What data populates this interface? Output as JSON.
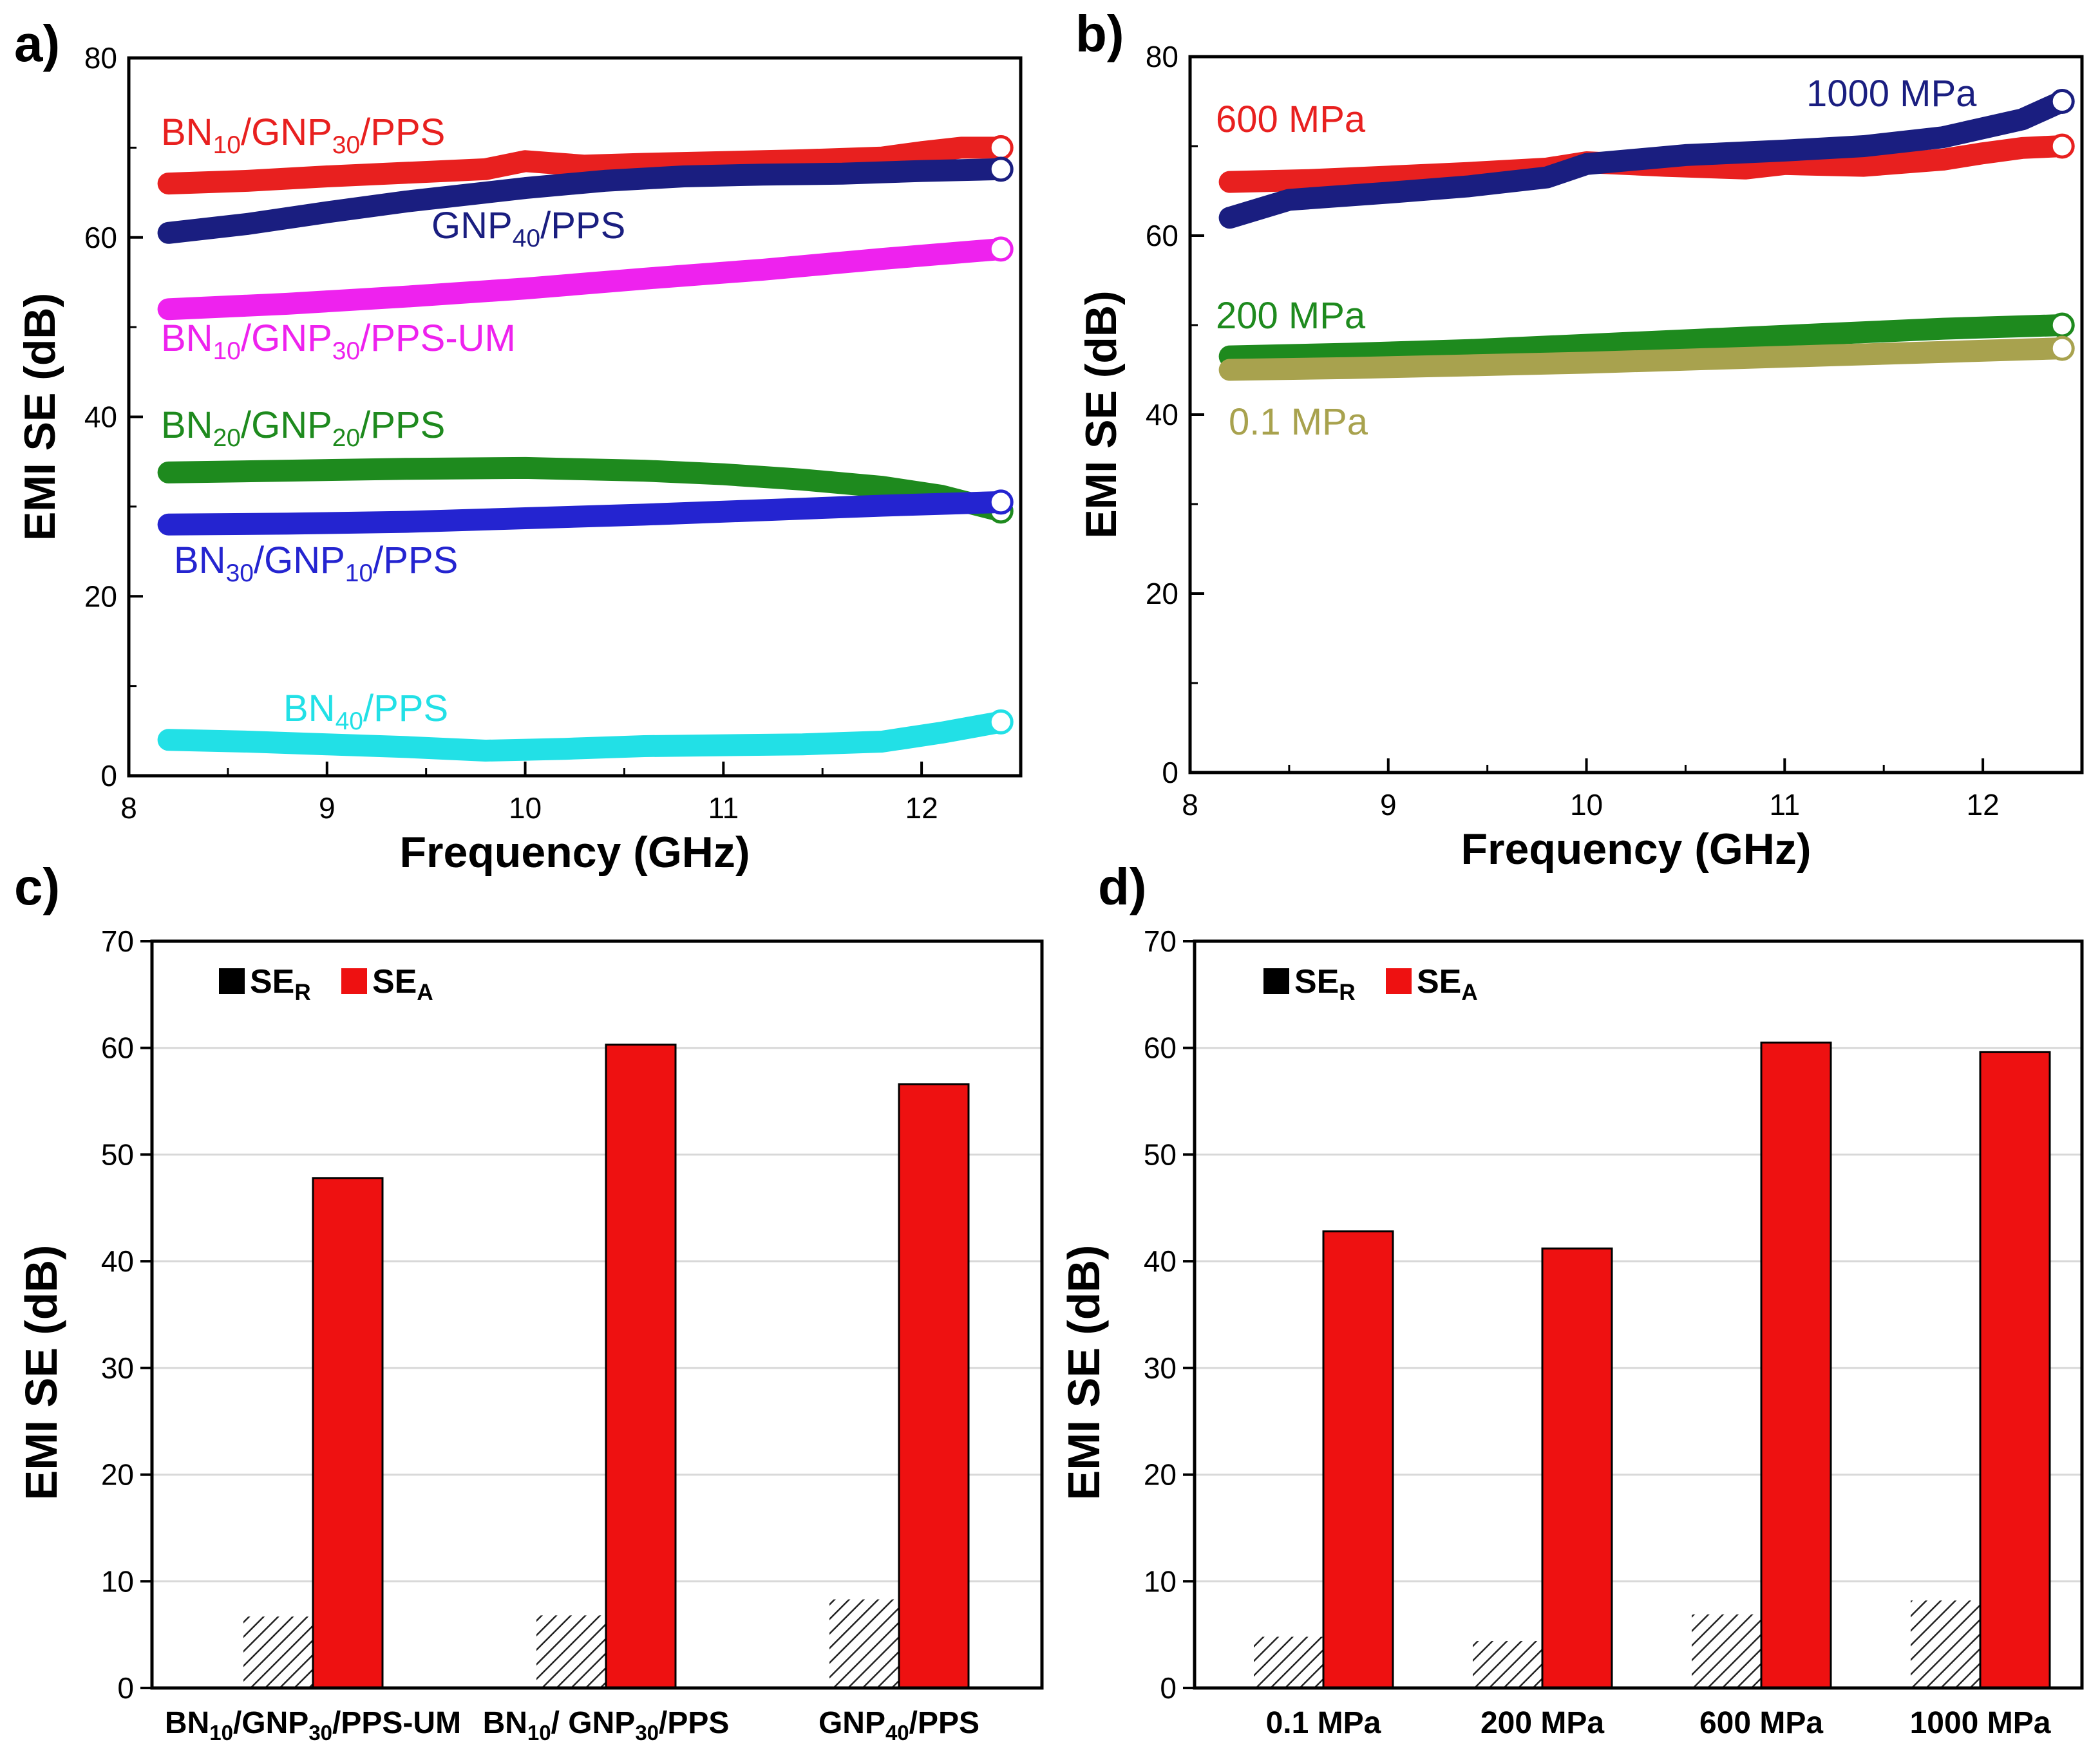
{
  "chart_data": [
    {
      "panel_label": "a)",
      "type": "line",
      "title": "",
      "xlabel": "Frequency (GHz)",
      "ylabel": "EMI SE (dB)",
      "xlim": [
        8,
        12.5
      ],
      "ylim": [
        0,
        80
      ],
      "xticks": [
        "8",
        "9",
        "10",
        "11",
        "12"
      ],
      "yticks": [
        "0",
        "20",
        "40",
        "60",
        "80"
      ],
      "series": [
        {
          "name": "BN10/GNP30/PPS",
          "label_main": "BN",
          "label_parts": [
            {
              "t": "BN",
              "sub": false
            },
            {
              "t": "10",
              "sub": true
            },
            {
              "t": "/GNP",
              "sub": false
            },
            {
              "t": "30",
              "sub": true
            },
            {
              "t": "/PPS",
              "sub": false
            }
          ],
          "color": "#e8201f",
          "x": [
            8.2,
            8.6,
            9.0,
            9.4,
            9.8,
            10.0,
            10.3,
            10.6,
            11.0,
            11.4,
            11.8,
            12.0,
            12.2,
            12.4
          ],
          "y": [
            66,
            66.3,
            66.8,
            67.2,
            67.6,
            68.5,
            68.0,
            68.2,
            68.4,
            68.6,
            68.9,
            69.5,
            70,
            70
          ]
        },
        {
          "name": "GNP40/PPS",
          "label_parts": [
            {
              "t": "GNP",
              "sub": false
            },
            {
              "t": "40",
              "sub": true
            },
            {
              "t": "/PPS",
              "sub": false
            }
          ],
          "color": "#1a1e80",
          "x": [
            8.2,
            8.6,
            9.0,
            9.4,
            9.8,
            10.0,
            10.4,
            10.8,
            11.2,
            11.6,
            12.0,
            12.4
          ],
          "y": [
            60.5,
            61.5,
            62.8,
            64.0,
            65.0,
            65.5,
            66.3,
            66.8,
            67.0,
            67.1,
            67.4,
            67.6
          ]
        },
        {
          "name": "BN10/GNP30/PPS-UM",
          "label_parts": [
            {
              "t": "BN",
              "sub": false
            },
            {
              "t": "10",
              "sub": true
            },
            {
              "t": "/GNP",
              "sub": false
            },
            {
              "t": "30",
              "sub": true
            },
            {
              "t": "/PPS-UM",
              "sub": false
            }
          ],
          "color": "#ee22ee",
          "x": [
            8.2,
            8.8,
            9.4,
            10.0,
            10.6,
            11.2,
            11.8,
            12.4
          ],
          "y": [
            52,
            52.6,
            53.4,
            54.3,
            55.4,
            56.4,
            57.6,
            58.7
          ]
        },
        {
          "name": "BN20/GNP20/PPS",
          "label_parts": [
            {
              "t": "BN",
              "sub": false
            },
            {
              "t": "20",
              "sub": true
            },
            {
              "t": "/GNP",
              "sub": false
            },
            {
              "t": "20",
              "sub": true
            },
            {
              "t": "/PPS",
              "sub": false
            }
          ],
          "color": "#1e8a1e",
          "x": [
            8.2,
            8.8,
            9.4,
            10.0,
            10.6,
            11.0,
            11.4,
            11.8,
            12.1,
            12.4
          ],
          "y": [
            33.8,
            34.0,
            34.2,
            34.3,
            34.0,
            33.6,
            33.0,
            32.2,
            31.2,
            29.5
          ]
        },
        {
          "name": "BN30/GNP10/PPS",
          "label_parts": [
            {
              "t": "BN",
              "sub": false
            },
            {
              "t": "30",
              "sub": true
            },
            {
              "t": "/GNP",
              "sub": false
            },
            {
              "t": "10",
              "sub": true
            },
            {
              "t": "/PPS",
              "sub": false
            }
          ],
          "color": "#2424d0",
          "x": [
            8.2,
            8.8,
            9.4,
            10.0,
            10.6,
            11.2,
            11.8,
            12.4
          ],
          "y": [
            28.0,
            28.1,
            28.3,
            28.7,
            29.1,
            29.6,
            30.1,
            30.5
          ]
        },
        {
          "name": "BN40/PPS",
          "label_parts": [
            {
              "t": "BN",
              "sub": false
            },
            {
              "t": "40",
              "sub": true
            },
            {
              "t": "/PPS",
              "sub": false
            }
          ],
          "color": "#22e0e6",
          "x": [
            8.2,
            8.6,
            9.0,
            9.4,
            9.8,
            10.2,
            10.6,
            11.0,
            11.4,
            11.8,
            12.1,
            12.4
          ],
          "y": [
            4.0,
            3.8,
            3.5,
            3.2,
            2.8,
            3.0,
            3.3,
            3.4,
            3.5,
            3.8,
            4.8,
            6.0
          ]
        }
      ]
    },
    {
      "panel_label": "b)",
      "type": "line",
      "title": "",
      "xlabel": "Frequency (GHz)",
      "ylabel": "EMI SE (dB)",
      "xlim": [
        8,
        12.5
      ],
      "ylim": [
        0,
        80
      ],
      "xticks": [
        "8",
        "9",
        "10",
        "11",
        "12"
      ],
      "yticks": [
        "0",
        "20",
        "40",
        "60",
        "80"
      ],
      "series": [
        {
          "name": "600 MPa",
          "label_parts": [
            {
              "t": "600 MPa",
              "sub": false
            }
          ],
          "color": "#e8201f",
          "x": [
            8.2,
            8.6,
            9.0,
            9.4,
            9.8,
            10.0,
            10.4,
            10.8,
            11.0,
            11.4,
            11.8,
            12.0,
            12.2,
            12.4
          ],
          "y": [
            66,
            66.2,
            66.6,
            67.0,
            67.5,
            68.2,
            67.8,
            67.5,
            68.0,
            67.8,
            68.5,
            69.2,
            69.8,
            70
          ]
        },
        {
          "name": "1000 MPa",
          "label_parts": [
            {
              "t": "1000 MPa",
              "sub": false
            }
          ],
          "color": "#1a1e80",
          "x": [
            8.2,
            8.5,
            9.0,
            9.4,
            9.8,
            10.0,
            10.5,
            11.0,
            11.4,
            11.8,
            12.0,
            12.2,
            12.4
          ],
          "y": [
            62,
            64,
            64.8,
            65.5,
            66.5,
            68.0,
            69.0,
            69.5,
            70.0,
            71.0,
            72.0,
            73.0,
            75.0
          ]
        },
        {
          "name": "200 MPa",
          "label_parts": [
            {
              "t": "200 MPa",
              "sub": false
            }
          ],
          "color": "#1e8a1e",
          "x": [
            8.2,
            8.8,
            9.4,
            10.0,
            10.6,
            11.2,
            11.8,
            12.4
          ],
          "y": [
            46.5,
            46.8,
            47.2,
            47.8,
            48.4,
            49.0,
            49.6,
            50.0
          ]
        },
        {
          "name": "0.1 MPa",
          "label_parts": [
            {
              "t": "0.1 MPa",
              "sub": false
            }
          ],
          "color": "#a8a24e",
          "x": [
            8.2,
            8.8,
            9.4,
            10.0,
            10.6,
            11.2,
            11.8,
            12.4
          ],
          "y": [
            45.0,
            45.2,
            45.5,
            45.8,
            46.2,
            46.6,
            47.0,
            47.4
          ]
        }
      ]
    },
    {
      "panel_label": "c)",
      "type": "bar",
      "title": "",
      "xlabel": "",
      "ylabel": "EMI SE  (dB)",
      "ylim": [
        0,
        70
      ],
      "yticks": [
        "0",
        "10",
        "20",
        "30",
        "40",
        "50",
        "60",
        "70"
      ],
      "categories": [
        "BN10/GNP30/PPS-UM",
        "BN10/ GNP30/PPS",
        "GNP40/PPS"
      ],
      "category_parts": [
        [
          {
            "t": "BN",
            "sub": false
          },
          {
            "t": "10",
            "sub": true
          },
          {
            "t": "/GNP",
            "sub": false
          },
          {
            "t": "30",
            "sub": true
          },
          {
            "t": "/PPS-UM",
            "sub": false
          }
        ],
        [
          {
            "t": "BN",
            "sub": false
          },
          {
            "t": "10",
            "sub": true
          },
          {
            "t": "/ GNP",
            "sub": false
          },
          {
            "t": "30",
            "sub": true
          },
          {
            "t": "/PPS",
            "sub": false
          }
        ],
        [
          {
            "t": "GNP",
            "sub": false
          },
          {
            "t": "40",
            "sub": true
          },
          {
            "t": "/PPS",
            "sub": false
          }
        ]
      ],
      "legend": [
        {
          "main": "SE",
          "sub": "R",
          "color": "#000000"
        },
        {
          "main": "SE",
          "sub": "A",
          "color": "#ee1111"
        }
      ],
      "series": [
        {
          "name": "SER",
          "pattern": "hatch",
          "values": [
            6.7,
            6.8,
            8.3
          ]
        },
        {
          "name": "SEA",
          "color": "#ee1111",
          "values": [
            47.8,
            60.3,
            56.6
          ]
        }
      ]
    },
    {
      "panel_label": "d)",
      "type": "bar",
      "title": "",
      "xlabel": "",
      "ylabel": "EMI SE  (dB)",
      "ylim": [
        0,
        70
      ],
      "yticks": [
        "0",
        "10",
        "20",
        "30",
        "40",
        "50",
        "60",
        "70"
      ],
      "categories": [
        "0.1 MPa",
        "200 MPa",
        "600 MPa",
        "1000 MPa"
      ],
      "category_parts": [
        [
          {
            "t": "0.1 MPa",
            "sub": false
          }
        ],
        [
          {
            "t": "200 MPa",
            "sub": false
          }
        ],
        [
          {
            "t": "600 MPa",
            "sub": false
          }
        ],
        [
          {
            "t": "1000 MPa",
            "sub": false
          }
        ]
      ],
      "legend": [
        {
          "main": "SE",
          "sub": "R",
          "color": "#000000"
        },
        {
          "main": "SE",
          "sub": "A",
          "color": "#ee1111"
        }
      ],
      "series": [
        {
          "name": "SER",
          "pattern": "hatch",
          "values": [
            4.8,
            4.4,
            6.9,
            8.2
          ]
        },
        {
          "name": "SEA",
          "color": "#ee1111",
          "values": [
            42.8,
            41.2,
            60.5,
            59.6
          ]
        }
      ]
    }
  ]
}
